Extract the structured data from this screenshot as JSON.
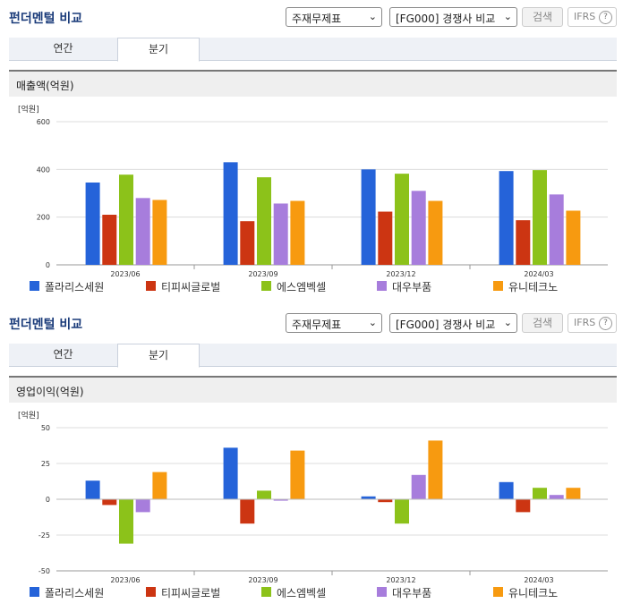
{
  "colors": {
    "series": [
      "#2563d9",
      "#cc3512",
      "#8cc21a",
      "#a77ddc",
      "#f79a10"
    ]
  },
  "panels": [
    {
      "title": "펀더멘털 비교",
      "select_statement": "주재무제표",
      "select_compare": "[FG000] 경쟁사 비교",
      "search_label": "검색",
      "ifrs_label": "IFRS",
      "help_icon": "?",
      "tab_annual": "연간",
      "tab_quarter": "분기",
      "subtitle": "매출액(억원)"
    },
    {
      "title": "펀더멘털 비교",
      "select_statement": "주재무제표",
      "select_compare": "[FG000] 경쟁사 비교",
      "search_label": "검색",
      "ifrs_label": "IFRS",
      "help_icon": "?",
      "tab_annual": "연간",
      "tab_quarter": "분기",
      "subtitle": "영업이익(억원)"
    }
  ],
  "chart_data": [
    {
      "type": "bar",
      "title": "매출액(억원)",
      "unit_label": "[억원]",
      "categories": [
        "2023/06",
        "2023/09",
        "2023/12",
        "2024/03"
      ],
      "ylim": [
        0,
        600
      ],
      "yticks": [
        0,
        200,
        400,
        600
      ],
      "grid": true,
      "legend": "bottom",
      "series": [
        {
          "name": "폴라리스세원",
          "values": [
            345,
            430,
            400,
            393
          ]
        },
        {
          "name": "티피씨글로벌",
          "values": [
            210,
            183,
            223,
            187
          ]
        },
        {
          "name": "에스엠벡셀",
          "values": [
            378,
            367,
            382,
            397
          ]
        },
        {
          "name": "대우부품",
          "values": [
            280,
            257,
            310,
            295
          ]
        },
        {
          "name": "유니테크노",
          "values": [
            272,
            268,
            268,
            227
          ]
        }
      ]
    },
    {
      "type": "bar",
      "title": "영업이익(억원)",
      "unit_label": "[억원]",
      "categories": [
        "2023/06",
        "2023/09",
        "2023/12",
        "2024/03"
      ],
      "ylim": [
        -50,
        50
      ],
      "yticks": [
        -50,
        -25,
        0,
        25,
        50
      ],
      "grid": true,
      "legend": "bottom",
      "series": [
        {
          "name": "폴라리스세원",
          "values": [
            13,
            36,
            2,
            12
          ]
        },
        {
          "name": "티피씨글로벌",
          "values": [
            -4,
            -17,
            -2,
            -9
          ]
        },
        {
          "name": "에스엠벡셀",
          "values": [
            -31,
            6,
            -17,
            8
          ]
        },
        {
          "name": "대우부품",
          "values": [
            -9,
            -1,
            17,
            3
          ]
        },
        {
          "name": "유니테크노",
          "values": [
            19,
            34,
            41,
            8
          ]
        }
      ]
    }
  ]
}
